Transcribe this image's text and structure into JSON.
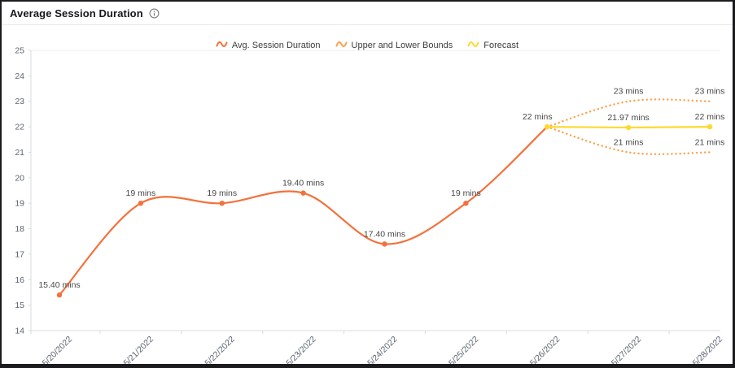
{
  "header": {
    "title": "Average Session Duration",
    "info_icon": "info-icon"
  },
  "legend": {
    "items": [
      {
        "label": "Avg. Session Duration",
        "color": "#F4713B"
      },
      {
        "label": "Upper and Lower Bounds",
        "color": "#F9A34F"
      },
      {
        "label": "Forecast",
        "color": "#FFD92F"
      }
    ]
  },
  "chart_data": {
    "type": "line",
    "title": "Average Session Duration",
    "categories": [
      "5/20/2022",
      "5/21/2022",
      "5/22/2022",
      "5/23/2022",
      "5/24/2022",
      "5/25/2022",
      "5/26/2022",
      "5/27/2022",
      "5/28/2022"
    ],
    "ylim": [
      14,
      25
    ],
    "yticks": [
      25,
      24,
      23,
      22,
      21,
      20,
      19,
      18,
      17,
      16,
      15,
      14
    ],
    "xlabel": "",
    "ylabel": "",
    "grid": "top-line-only",
    "legend_position": "top-center",
    "x_label_rotation": -45,
    "series": [
      {
        "name": "Upper Bound",
        "color": "#F9A34F",
        "line_style": "dotted",
        "smooth": true,
        "marker": "none",
        "values": [
          null,
          null,
          null,
          null,
          null,
          null,
          22,
          23,
          23
        ],
        "point_labels": [
          null,
          null,
          null,
          null,
          null,
          null,
          null,
          "23 mins",
          "23 mins"
        ]
      },
      {
        "name": "Lower Bound",
        "color": "#F9A34F",
        "line_style": "dotted",
        "smooth": true,
        "marker": "none",
        "values": [
          null,
          null,
          null,
          null,
          null,
          null,
          22,
          21,
          21
        ],
        "point_labels": [
          null,
          null,
          null,
          null,
          null,
          null,
          null,
          "21 mins",
          "21 mins"
        ]
      },
      {
        "name": "Avg. Session Duration",
        "color": "#F4713B",
        "line_style": "solid",
        "smooth": true,
        "marker": "circle",
        "values": [
          15.4,
          19,
          19,
          19.4,
          17.4,
          19,
          22,
          null,
          null
        ],
        "point_labels": [
          "15.40 mins",
          "19 mins",
          "19 mins",
          "19.40 mins",
          "17.40 mins",
          "19 mins",
          "22 mins",
          null,
          null
        ]
      },
      {
        "name": "Forecast",
        "color": "#FFD92F",
        "line_style": "solid",
        "smooth": false,
        "marker": "circle",
        "values": [
          null,
          null,
          null,
          null,
          null,
          null,
          22,
          21.97,
          22
        ],
        "point_labels": [
          null,
          null,
          null,
          null,
          null,
          null,
          null,
          "21.97 mins",
          "22 mins"
        ]
      }
    ]
  }
}
